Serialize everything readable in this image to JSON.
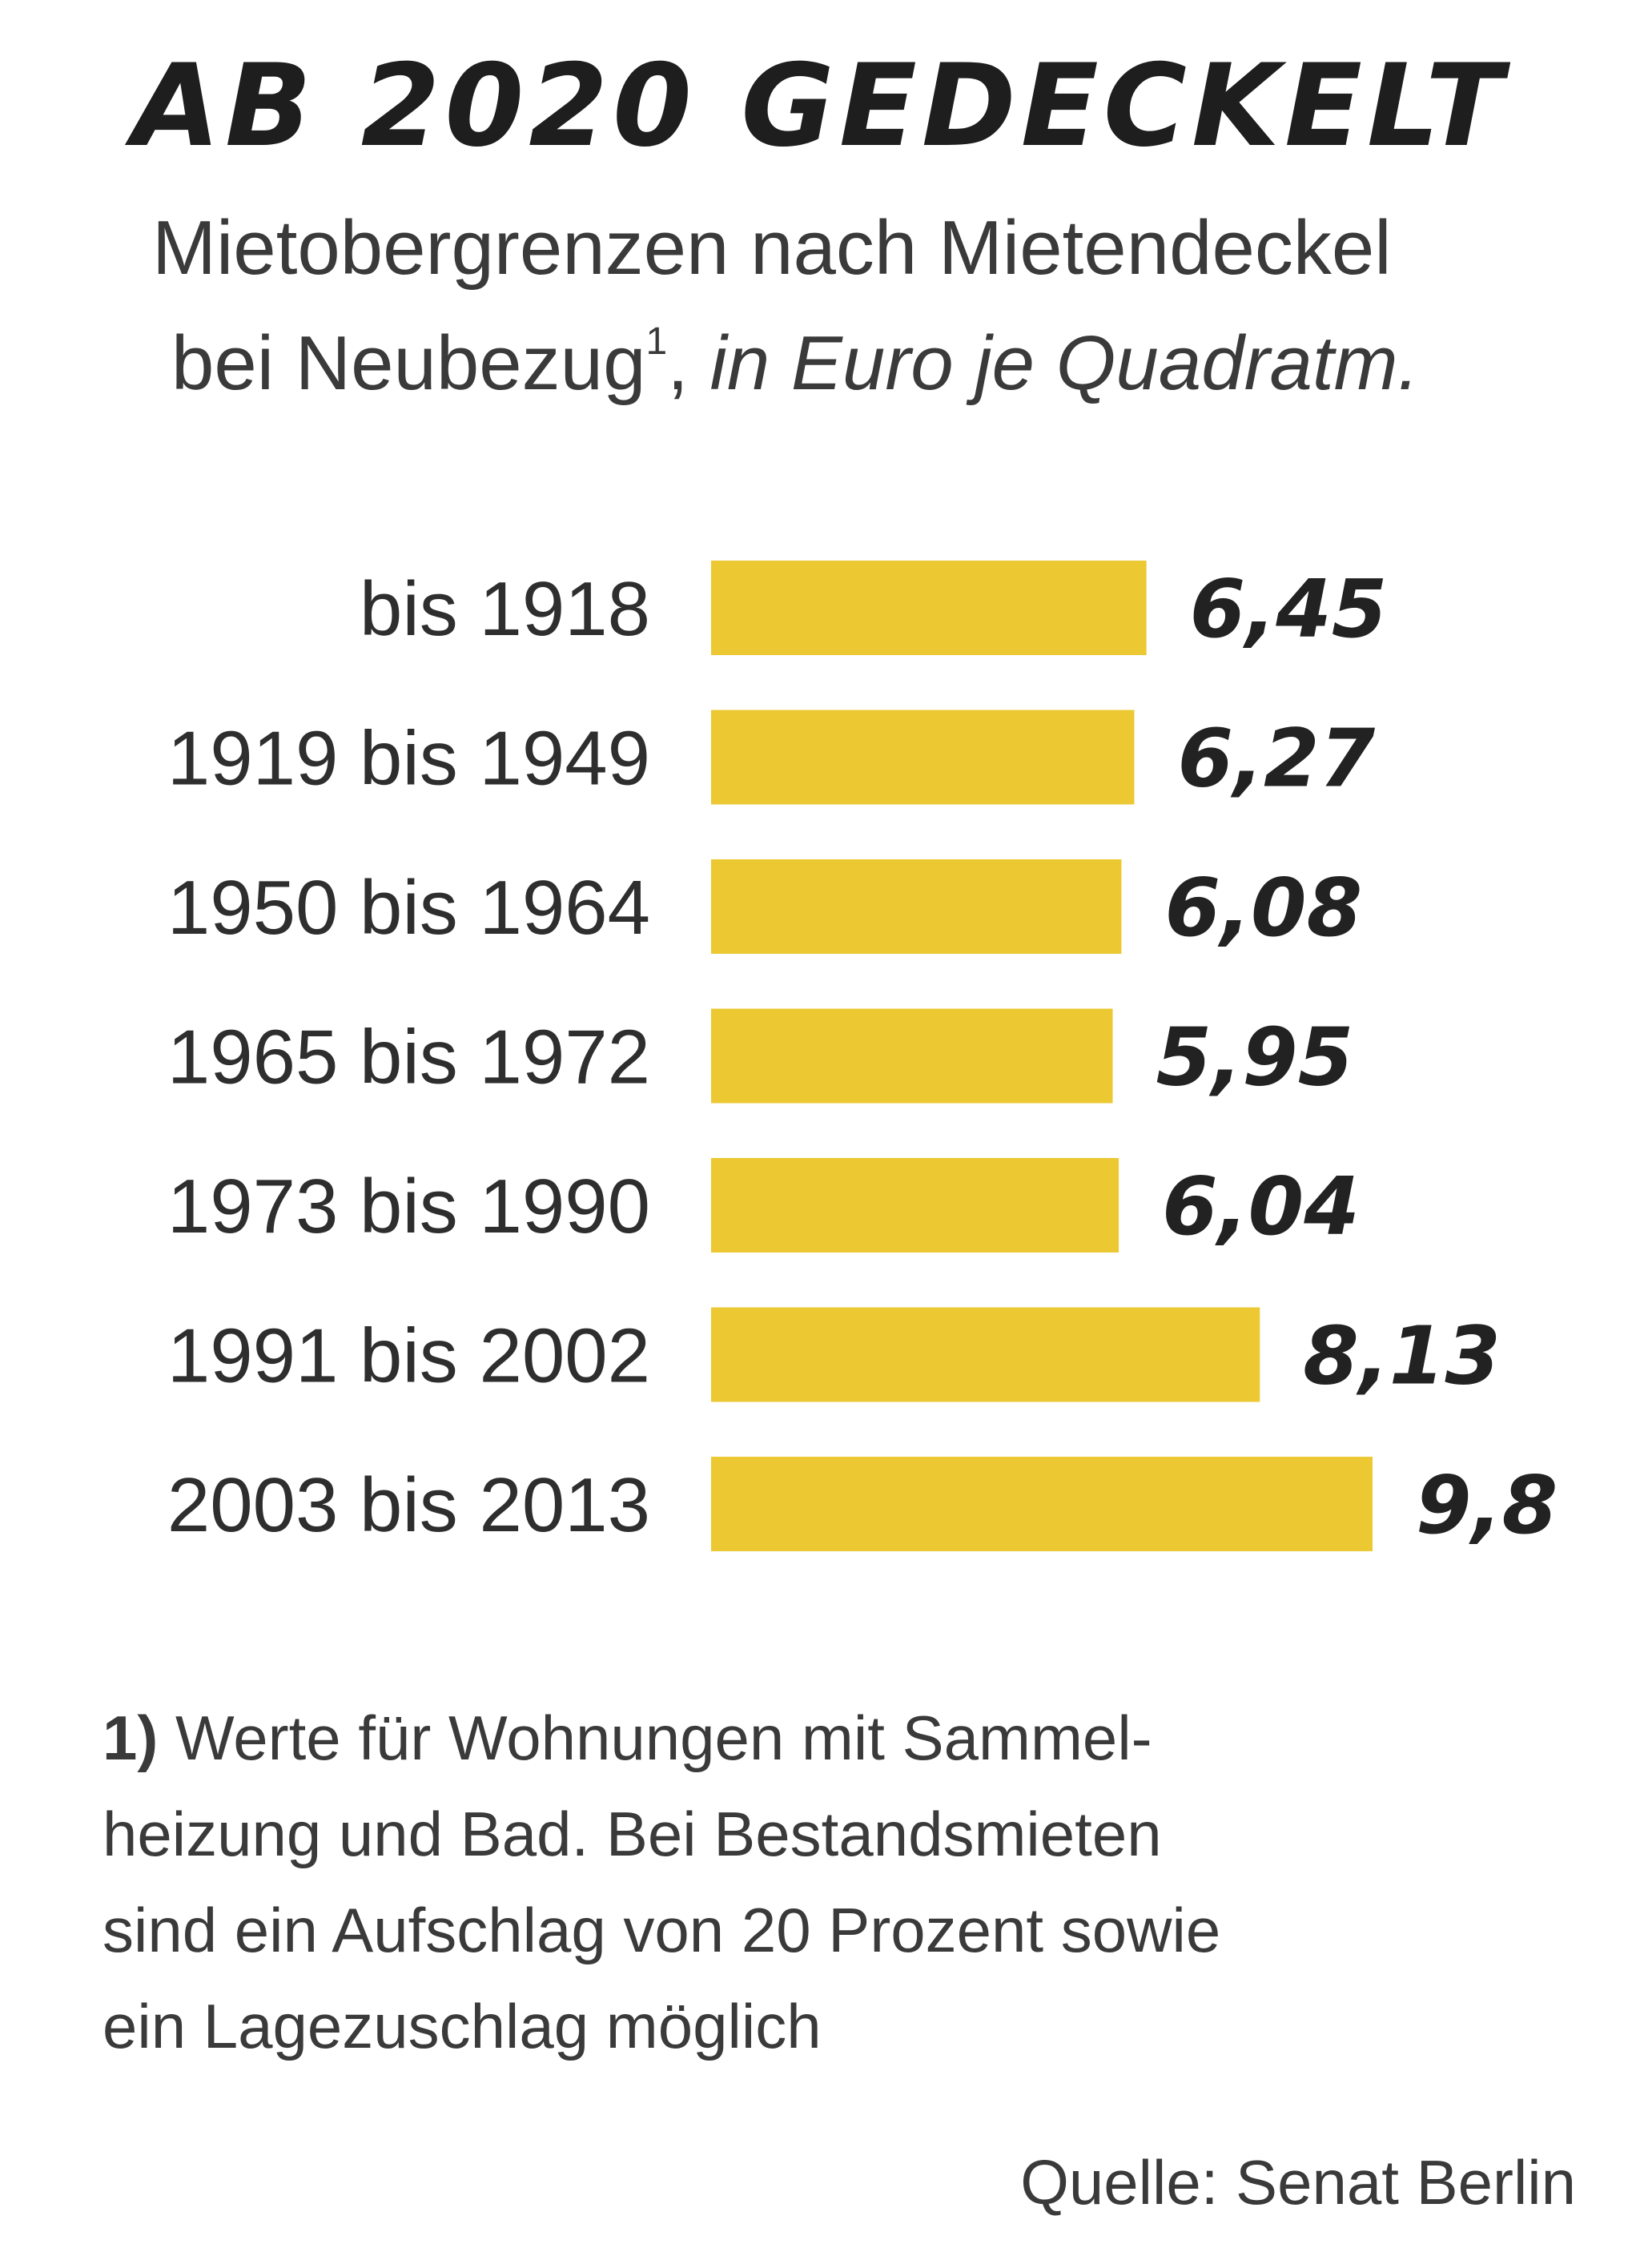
{
  "title": "AB 2020 GEDECKELT",
  "subtitle": {
    "line1": "Mietobergrenzen nach Mietendeckel",
    "line2_text": "bei Neubezug",
    "footnote_marker": "1",
    "line2_sep": ", ",
    "unit": "in Euro je Quadratm."
  },
  "chart_data": {
    "type": "bar",
    "orientation": "horizontal",
    "categories": [
      "bis 1918",
      "1919 bis 1949",
      "1950 bis 1964",
      "1965 bis 1972",
      "1973 bis 1990",
      "1991 bis 2002",
      "2003 bis 2013"
    ],
    "values": [
      6.45,
      6.27,
      6.08,
      5.95,
      6.04,
      8.13,
      9.8
    ],
    "value_labels": [
      "6,45",
      "6,27",
      "6,08",
      "5,95",
      "6,04",
      "8,13",
      "9,8"
    ],
    "xlim": [
      0,
      9.8
    ],
    "grid": false,
    "bar_color": "#ecc833"
  },
  "footnote": {
    "marker": "1)",
    "lines": [
      " Werte für Wohnungen mit Sammel-",
      "heizung und Bad. Bei Bestandsmieten",
      "sind ein Aufschlag von 20 Prozent sowie",
      "ein Lagezuschlag möglich"
    ]
  },
  "source": "Quelle: Senat Berlin"
}
